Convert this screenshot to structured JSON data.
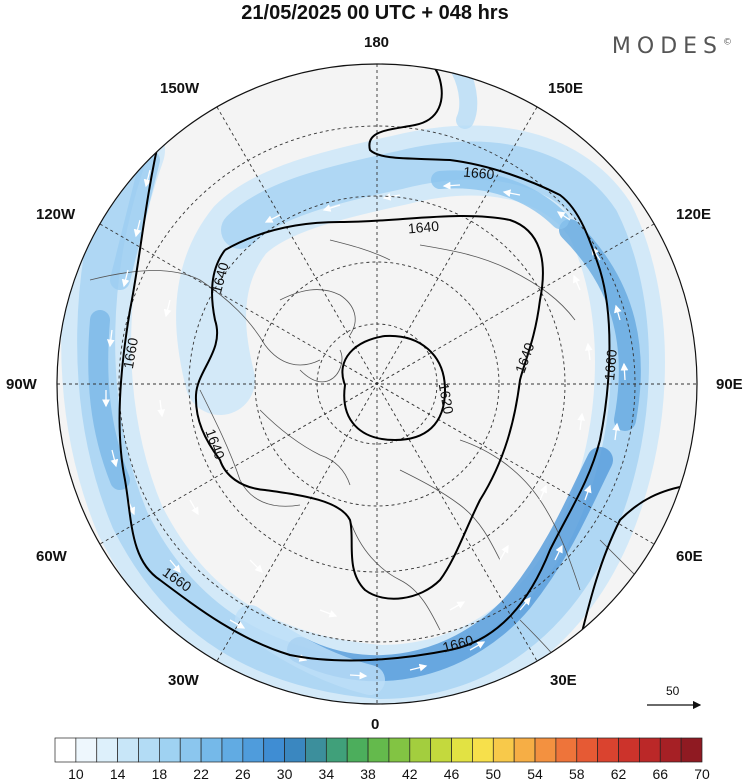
{
  "title": "21/05/2025  00 UTC  + 048 hrs",
  "brand": "MODES",
  "brand_mark": "©",
  "longitude_labels": {
    "top": "180",
    "bottom": "0",
    "left": "90W",
    "right": "90E",
    "upper_left": "150W",
    "upper_right": "150E",
    "mid_upper_left": "120W",
    "mid_upper_right": "120E",
    "mid_lower_left": "60W",
    "mid_lower_right": "60E",
    "lower_left": "30W",
    "lower_right": "30E"
  },
  "contour_labels": [
    "1620",
    "1640",
    "1640",
    "1640",
    "1640",
    "1660",
    "1660",
    "1660",
    "1660",
    "1660"
  ],
  "wind_reference": "50",
  "colorbar": {
    "labels": [
      "10",
      "14",
      "18",
      "22",
      "26",
      "30",
      "34",
      "38",
      "42",
      "46",
      "50",
      "54",
      "58",
      "62",
      "66",
      "70"
    ],
    "colors": [
      "#ffffff",
      "#eef7fd",
      "#ddf0fb",
      "#c8e6f8",
      "#b3dcf5",
      "#9fd2f2",
      "#8bc6ee",
      "#75b9e9",
      "#61abe3",
      "#4f9cdc",
      "#3f8dd3",
      "#3a87c0",
      "#3c8f9c",
      "#40a07a",
      "#4cae5c",
      "#64ba4c",
      "#82c443",
      "#a3ce3e",
      "#c4d93d",
      "#e2e243",
      "#f7e04b",
      "#f8c94a",
      "#f6ae45",
      "#f39140",
      "#ee743a",
      "#e65a34",
      "#da432f",
      "#cc332b",
      "#bb2828",
      "#a62025",
      "#8f1a22"
    ]
  }
}
